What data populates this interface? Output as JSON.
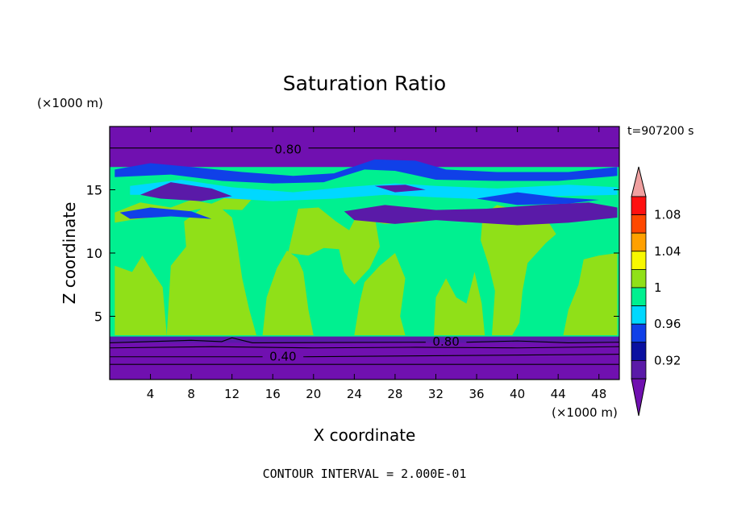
{
  "chart_data": {
    "type": "heatmap",
    "title": "Saturation Ratio",
    "xlabel": "X coordinate",
    "ylabel": "Z coordinate",
    "x_unit": "(×1000 m)",
    "y_unit": "(×1000 m)",
    "time_label": "t=907200 s",
    "footer": "CONTOUR INTERVAL = 2.000E-01",
    "xlim": [
      0,
      50
    ],
    "ylim": [
      0,
      20
    ],
    "x_ticks": [
      4,
      8,
      12,
      16,
      20,
      24,
      28,
      32,
      36,
      40,
      44,
      48
    ],
    "y_ticks": [
      5,
      10,
      15
    ],
    "contour_labels": [
      {
        "text": "0.80",
        "x": 17.5,
        "y": 18.2
      },
      {
        "text": "0.80",
        "x": 33.0,
        "y": 3.0
      },
      {
        "text": "0.40",
        "x": 17.0,
        "y": 1.8
      }
    ],
    "colorbar": {
      "levels": [
        "",
        "0.92",
        "",
        "0.96",
        "",
        "1",
        "",
        "1.04",
        "",
        "1.08",
        ""
      ],
      "colors": {
        "below": "#7010b0",
        "0.90-0.92": "#5a1aa8",
        "0.92-0.94": "#0a10a0",
        "0.94-0.96": "#1040e8",
        "0.96-0.98": "#00d8ff",
        "0.98-1.00": "#00f090",
        "1.00-1.02": "#90e018",
        "1.02-1.04": "#f8f800",
        "1.04-1.06": "#ffa000",
        "1.06-1.08": "#ff4800",
        "1.08-1.10": "#ff1010",
        "above": "#f0a0a0"
      }
    }
  }
}
